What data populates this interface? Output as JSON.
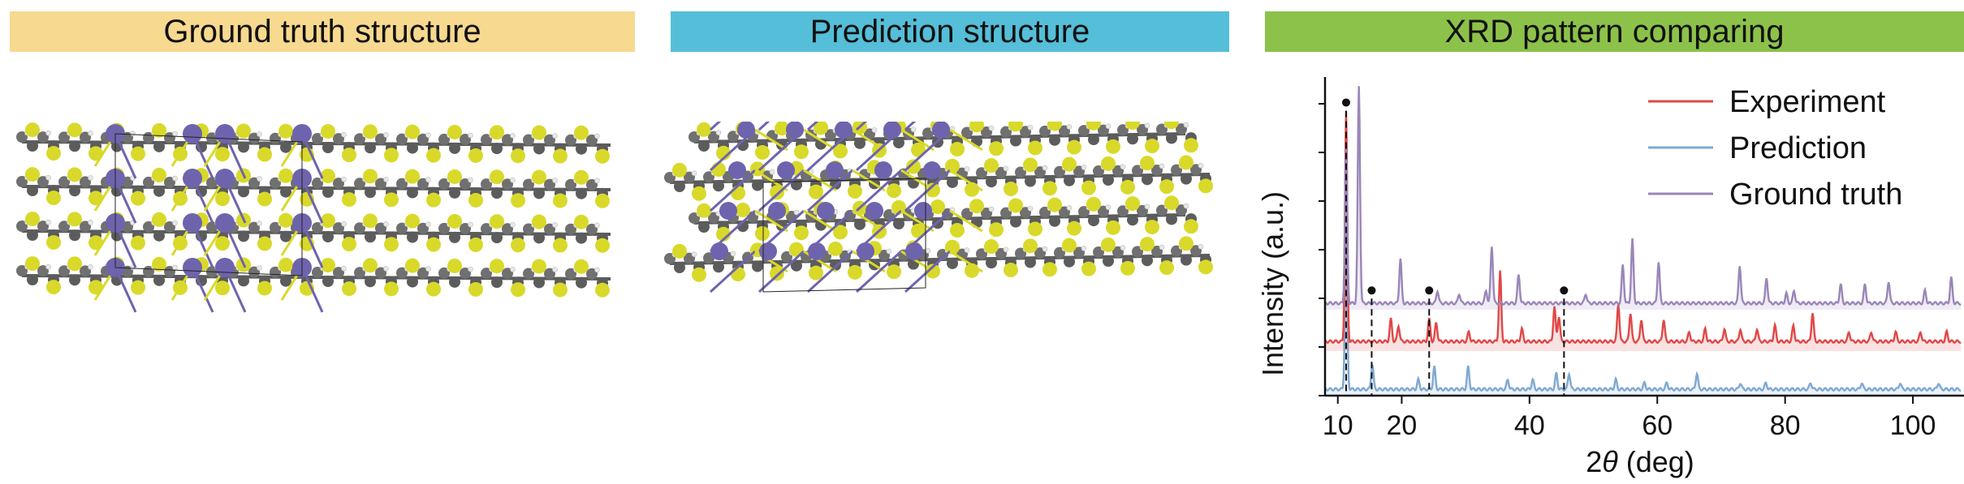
{
  "headers": {
    "ground_truth": "Ground truth structure",
    "prediction": "Prediction structure",
    "xrd": "XRD pattern comparing"
  },
  "colors": {
    "ground_truth_header": "#f7d98f",
    "prediction_header": "#55bed8",
    "xrd_header": "#8cc24a",
    "experiment": "#e04848",
    "prediction": "#7fa9d2",
    "ground_truth": "#9a86b8",
    "sulfur_atom": "#d9d92a",
    "metal_atom": "#6e64ad",
    "carbon_atom": "#707070",
    "hydrogen_atom": "#e8e8e8"
  },
  "chart_data": {
    "type": "line",
    "xlabel_prefix": "2",
    "xlabel_symbol": "θ",
    "xlabel_suffix": " (deg)",
    "ylabel": "Intensity (a.u.)",
    "xlim": [
      8,
      108
    ],
    "x_ticks": [
      10,
      20,
      40,
      60,
      80,
      100
    ],
    "legend_position": "top-right",
    "series": [
      {
        "name": "Experiment",
        "offset": 0.14,
        "baseline": 0.03,
        "peaks": [
          [
            11.3,
            0.72,
            0.25
          ],
          [
            18.3,
            0.07,
            0.25
          ],
          [
            19.5,
            0.05,
            0.25
          ],
          [
            24.3,
            0.07,
            0.25
          ],
          [
            25.4,
            0.06,
            0.25
          ],
          [
            30.5,
            0.03,
            0.25
          ],
          [
            35.4,
            0.22,
            0.25
          ],
          [
            38.8,
            0.04,
            0.25
          ],
          [
            43.9,
            0.11,
            0.25
          ],
          [
            44.6,
            0.08,
            0.25
          ],
          [
            53.9,
            0.12,
            0.25
          ],
          [
            55.8,
            0.09,
            0.25
          ],
          [
            57.5,
            0.07,
            0.25
          ],
          [
            61,
            0.07,
            0.25
          ],
          [
            65,
            0.03,
            0.25
          ],
          [
            67.5,
            0.04,
            0.25
          ],
          [
            70.5,
            0.04,
            0.25
          ],
          [
            73,
            0.04,
            0.25
          ],
          [
            75.6,
            0.04,
            0.25
          ],
          [
            78.4,
            0.05,
            0.25
          ],
          [
            81.3,
            0.05,
            0.25
          ],
          [
            84.3,
            0.09,
            0.25
          ],
          [
            90,
            0.03,
            0.25
          ],
          [
            93.5,
            0.03,
            0.25
          ],
          [
            97.3,
            0.03,
            0.25
          ],
          [
            101.2,
            0.03,
            0.25
          ],
          [
            105.3,
            0.03,
            0.25
          ]
        ]
      },
      {
        "name": "Prediction",
        "offset": 0.0,
        "baseline": 0.02,
        "peaks": [
          [
            11.3,
            0.5,
            0.25
          ],
          [
            15.4,
            0.08,
            0.25
          ],
          [
            22.6,
            0.03,
            0.25
          ],
          [
            25.1,
            0.07,
            0.25
          ],
          [
            30.4,
            0.07,
            0.25
          ],
          [
            36.6,
            0.03,
            0.25
          ],
          [
            40.5,
            0.03,
            0.25
          ],
          [
            44.2,
            0.05,
            0.25
          ],
          [
            46.2,
            0.05,
            0.25
          ],
          [
            53.5,
            0.03,
            0.25
          ],
          [
            58,
            0.02,
            0.25
          ],
          [
            61.5,
            0.02,
            0.25
          ],
          [
            66.2,
            0.05,
            0.25
          ],
          [
            73,
            0.02,
            0.25
          ],
          [
            77,
            0.02,
            0.25
          ],
          [
            84,
            0.02,
            0.25
          ],
          [
            92,
            0.02,
            0.25
          ],
          [
            98,
            0.02,
            0.25
          ],
          [
            104,
            0.02,
            0.25
          ]
        ]
      },
      {
        "name": "Ground truth",
        "offset": 0.27,
        "baseline": 0.02,
        "peaks": [
          [
            11.3,
            0.5,
            0.25
          ],
          [
            13.3,
            0.68,
            0.25
          ],
          [
            19.8,
            0.14,
            0.25
          ],
          [
            25.6,
            0.04,
            0.25
          ],
          [
            29,
            0.03,
            0.25
          ],
          [
            33.2,
            0.04,
            0.25
          ],
          [
            34.1,
            0.18,
            0.25
          ],
          [
            38.3,
            0.09,
            0.25
          ],
          [
            48.8,
            0.03,
            0.25
          ],
          [
            54.6,
            0.12,
            0.25
          ],
          [
            56.1,
            0.2,
            0.25
          ],
          [
            60.2,
            0.13,
            0.25
          ],
          [
            72.9,
            0.12,
            0.25
          ],
          [
            77.1,
            0.08,
            0.25
          ],
          [
            80.2,
            0.03,
            0.25
          ],
          [
            81.4,
            0.04,
            0.25
          ],
          [
            88.7,
            0.06,
            0.25
          ],
          [
            92.5,
            0.06,
            0.25
          ],
          [
            96.2,
            0.07,
            0.25
          ],
          [
            101.9,
            0.04,
            0.25
          ],
          [
            106,
            0.08,
            0.25
          ]
        ]
      }
    ],
    "markers": [
      {
        "x": 11.3,
        "y": 0.92,
        "line_bottom": 0.0
      },
      {
        "x": 15.3,
        "y": 0.33,
        "line_bottom": 0.0
      },
      {
        "x": 24.3,
        "y": 0.33,
        "line_bottom": 0.0
      },
      {
        "x": 45.4,
        "y": 0.33,
        "line_bottom": 0.0
      }
    ]
  }
}
